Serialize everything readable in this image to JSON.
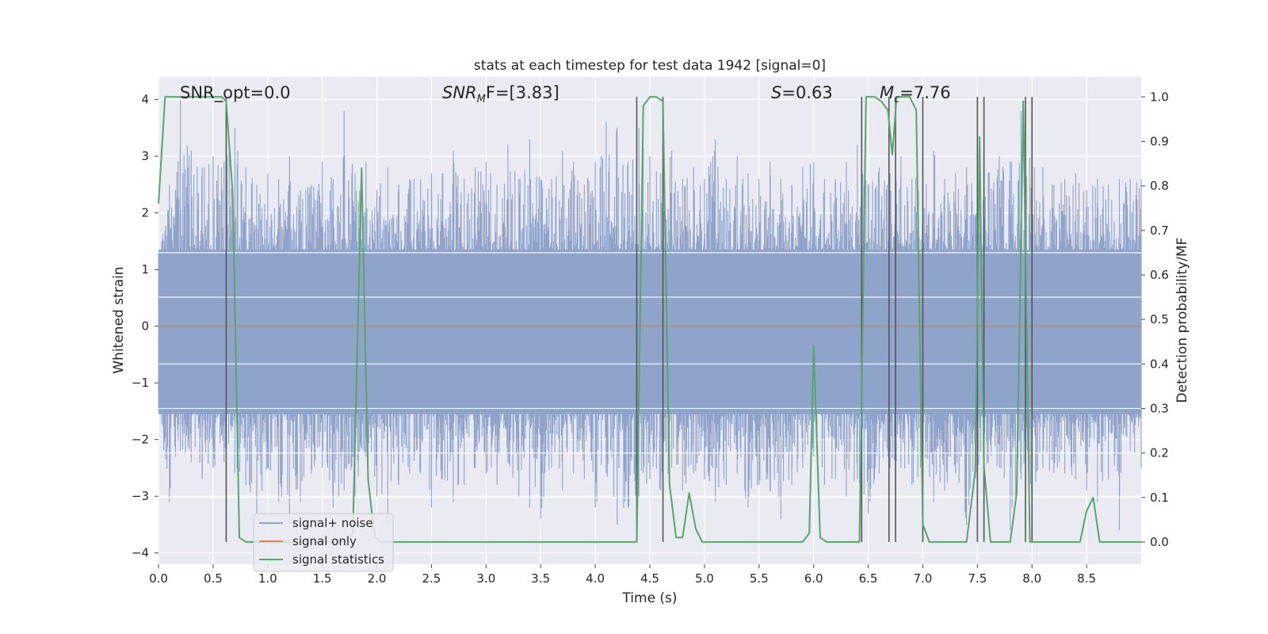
{
  "chart_data": {
    "type": "line",
    "title": "stats at each timestep for test data 1942 [signal=0]",
    "xlabel": "Time (s)",
    "ylabel": "Whitened strain",
    "ylabel_right": "Detection probability/MF",
    "xlim": [
      0.0,
      9.0
    ],
    "ylim": [
      -4.2,
      4.4
    ],
    "ylim_right": [
      -0.05,
      1.045
    ],
    "x_ticks": [
      0.0,
      0.5,
      1.0,
      1.5,
      2.0,
      2.5,
      3.0,
      3.5,
      4.0,
      4.5,
      5.0,
      5.5,
      6.0,
      6.5,
      7.0,
      7.5,
      8.0,
      8.5
    ],
    "x_tick_labels": [
      "0.0",
      "0.5",
      "1.0",
      "1.5",
      "2.0",
      "2.5",
      "3.0",
      "3.5",
      "4.0",
      "4.5",
      "5.0",
      "5.5",
      "6.0",
      "6.5",
      "7.0",
      "7.5",
      "8.0",
      "8.5"
    ],
    "y_ticks": [
      -4,
      -3,
      -2,
      -1,
      0,
      1,
      2,
      3,
      4
    ],
    "y_tick_labels": [
      "−4",
      "−3",
      "−2",
      "−1",
      "0",
      "1",
      "2",
      "3",
      "4"
    ],
    "y_ticks_right": [
      0.0,
      0.1,
      0.2,
      0.3,
      0.4,
      0.5,
      0.6,
      0.7,
      0.8,
      0.9,
      1.0
    ],
    "y_tick_labels_right": [
      "0.0",
      "0.1",
      "0.2",
      "0.3",
      "0.4",
      "0.5",
      "0.6",
      "0.7",
      "0.8",
      "0.9",
      "1.0"
    ],
    "annotations": {
      "snr_opt": "SNR_opt=0.0",
      "snr_mf_main": "SNR",
      "snr_mf_sub": "M",
      "snr_mf_rest": "F=[3.83]",
      "s_main": "S",
      "s_rest": "=0.63",
      "mc_main": "M",
      "mc_sub": "c",
      "mc_rest": "=7.76"
    },
    "legend": {
      "location": "lower-left",
      "entries": [
        "signal+ noise",
        "signal only",
        "signal statistics"
      ]
    },
    "colors": {
      "noise": "#8fa3cb",
      "signal_only": "#dd8452",
      "statistics": "#55a868",
      "vlines": "#555555",
      "background": "#eaeaf2",
      "grid": "#ffffff"
    },
    "noise_envelope": {
      "t": [
        0.0,
        0.1,
        0.2,
        0.3,
        0.4,
        0.5,
        0.6,
        0.7,
        0.8,
        0.9,
        1.0,
        1.1,
        1.2,
        1.3,
        1.4,
        1.5,
        1.6,
        1.7,
        1.8,
        1.9,
        2.0,
        2.1,
        2.2,
        2.3,
        2.4,
        2.5,
        2.6,
        2.7,
        2.8,
        2.9,
        3.0,
        3.1,
        3.2,
        3.3,
        3.4,
        3.5,
        3.6,
        3.7,
        3.8,
        3.9,
        4.0,
        4.1,
        4.2,
        4.3,
        4.4,
        4.5,
        4.6,
        4.7,
        4.8,
        4.9,
        5.0,
        5.1,
        5.2,
        5.3,
        5.4,
        5.5,
        5.6,
        5.7,
        5.8,
        5.9,
        6.0,
        6.1,
        6.2,
        6.3,
        6.4,
        6.5,
        6.6,
        6.7,
        6.8,
        6.9,
        7.0,
        7.1,
        7.2,
        7.3,
        7.4,
        7.5,
        7.6,
        7.7,
        7.8,
        7.9,
        8.0,
        8.1,
        8.2,
        8.3,
        8.4,
        8.5,
        8.6,
        8.7,
        8.8,
        8.9,
        9.0
      ],
      "max": [
        1.3,
        2.5,
        4.0,
        3.1,
        2.8,
        3.0,
        2.9,
        3.5,
        2.8,
        2.5,
        2.7,
        2.6,
        3.0,
        2.4,
        2.5,
        2.9,
        2.6,
        3.8,
        2.7,
        2.9,
        2.4,
        2.8,
        2.5,
        2.6,
        2.6,
        2.7,
        2.7,
        3.1,
        2.6,
        2.8,
        2.9,
        2.5,
        3.2,
        2.6,
        3.3,
        2.6,
        2.6,
        3.1,
        2.9,
        2.5,
        2.9,
        3.6,
        3.5,
        2.9,
        3.5,
        3.0,
        2.7,
        3.1,
        2.6,
        2.8,
        2.6,
        3.3,
        2.6,
        3.0,
        2.7,
        2.6,
        2.9,
        2.6,
        2.5,
        2.8,
        2.9,
        2.6,
        2.6,
        2.9,
        3.2,
        2.5,
        2.8,
        2.7,
        3.0,
        2.6,
        2.8,
        3.1,
        2.6,
        2.7,
        2.8,
        2.5,
        2.7,
        3.0,
        2.9,
        3.8,
        2.9,
        2.8,
        2.5,
        2.6,
        2.7,
        2.4,
        2.6,
        2.5,
        2.6,
        2.6,
        2.6
      ],
      "min": [
        -1.5,
        -3.1,
        -2.2,
        -2.4,
        -2.7,
        -2.5,
        -2.4,
        -2.6,
        -2.8,
        -3.3,
        -2.5,
        -3.1,
        -3.5,
        -3.1,
        -2.6,
        -2.5,
        -3.2,
        -2.9,
        -3.0,
        -2.3,
        -3.0,
        -3.5,
        -2.8,
        -2.6,
        -2.6,
        -3.2,
        -2.7,
        -3.1,
        -2.8,
        -2.5,
        -2.6,
        -2.8,
        -2.4,
        -3.0,
        -3.2,
        -3.4,
        -2.5,
        -2.9,
        -2.6,
        -2.7,
        -3.2,
        -2.6,
        -3.5,
        -3.2,
        -3.0,
        -2.7,
        -2.9,
        -2.5,
        -2.9,
        -2.6,
        -2.7,
        -3.1,
        -2.8,
        -2.6,
        -3.2,
        -2.8,
        -2.9,
        -3.4,
        -2.8,
        -2.5,
        -2.3,
        -2.8,
        -2.7,
        -3.0,
        -2.7,
        -3.3,
        -2.6,
        -2.5,
        -2.5,
        -2.8,
        -2.6,
        -3.1,
        -2.9,
        -2.6,
        -3.5,
        -2.7,
        -2.4,
        -2.5,
        -3.6,
        -2.7,
        -3.2,
        -2.5,
        -2.6,
        -2.6,
        -2.7,
        -2.9,
        -3.1,
        -2.7,
        -3.6,
        -2.2,
        -2.5
      ]
    },
    "statistics_series": {
      "name": "signal statistics",
      "x": [
        0.0,
        0.06,
        0.12,
        0.2,
        0.3,
        0.4,
        0.5,
        0.58,
        0.62,
        0.68,
        0.74,
        0.8,
        0.9,
        1.0,
        1.1,
        1.2,
        1.3,
        1.4,
        1.5,
        1.6,
        1.7,
        1.78,
        1.86,
        1.92,
        1.98,
        2.04,
        2.1,
        2.2,
        2.5,
        3.0,
        3.5,
        4.0,
        4.38,
        4.44,
        4.5,
        4.56,
        4.62,
        4.68,
        4.74,
        4.8,
        4.86,
        4.92,
        4.98,
        5.04,
        5.5,
        5.9,
        5.96,
        6.0,
        6.06,
        6.12,
        6.2,
        6.3,
        6.42,
        6.48,
        6.56,
        6.62,
        6.68,
        6.72,
        6.76,
        6.82,
        6.88,
        6.94,
        7.0,
        7.06,
        7.12,
        7.2,
        7.3,
        7.4,
        7.48,
        7.52,
        7.56,
        7.62,
        7.68,
        7.74,
        7.8,
        7.86,
        7.92,
        7.98,
        8.04,
        8.1,
        8.2,
        8.3,
        8.38,
        8.44,
        8.5,
        8.56,
        8.62,
        8.7,
        8.8,
        9.0
      ],
      "y": [
        0.76,
        1.0,
        1.0,
        1.0,
        1.0,
        1.0,
        1.0,
        1.0,
        0.99,
        0.78,
        0.01,
        0.0,
        0.0,
        0.0,
        0.0,
        0.0,
        0.0,
        0.0,
        0.0,
        0.0,
        0.0,
        0.02,
        0.84,
        0.14,
        0.01,
        0.0,
        0.0,
        0.0,
        0.0,
        0.0,
        0.0,
        0.0,
        0.0,
        0.98,
        1.0,
        1.0,
        0.99,
        0.13,
        0.01,
        0.01,
        0.11,
        0.03,
        0.0,
        0.0,
        0.0,
        0.0,
        0.02,
        0.44,
        0.01,
        0.0,
        0.0,
        0.0,
        0.0,
        1.0,
        1.0,
        0.99,
        0.97,
        0.87,
        1.0,
        1.0,
        1.0,
        0.97,
        0.04,
        0.0,
        0.0,
        0.0,
        0.0,
        0.0,
        0.16,
        0.91,
        0.17,
        0.0,
        0.0,
        0.0,
        0.0,
        0.11,
        0.99,
        0.0,
        0.0,
        0.0,
        0.0,
        0.0,
        0.0,
        0.0,
        0.07,
        0.1,
        0.0,
        0.0,
        0.0,
        0.0
      ]
    },
    "vertical_lines_x": [
      0.62,
      4.38,
      4.62,
      6.44,
      6.69,
      6.75,
      7.0,
      7.5,
      7.56,
      7.94,
      8.0
    ]
  }
}
